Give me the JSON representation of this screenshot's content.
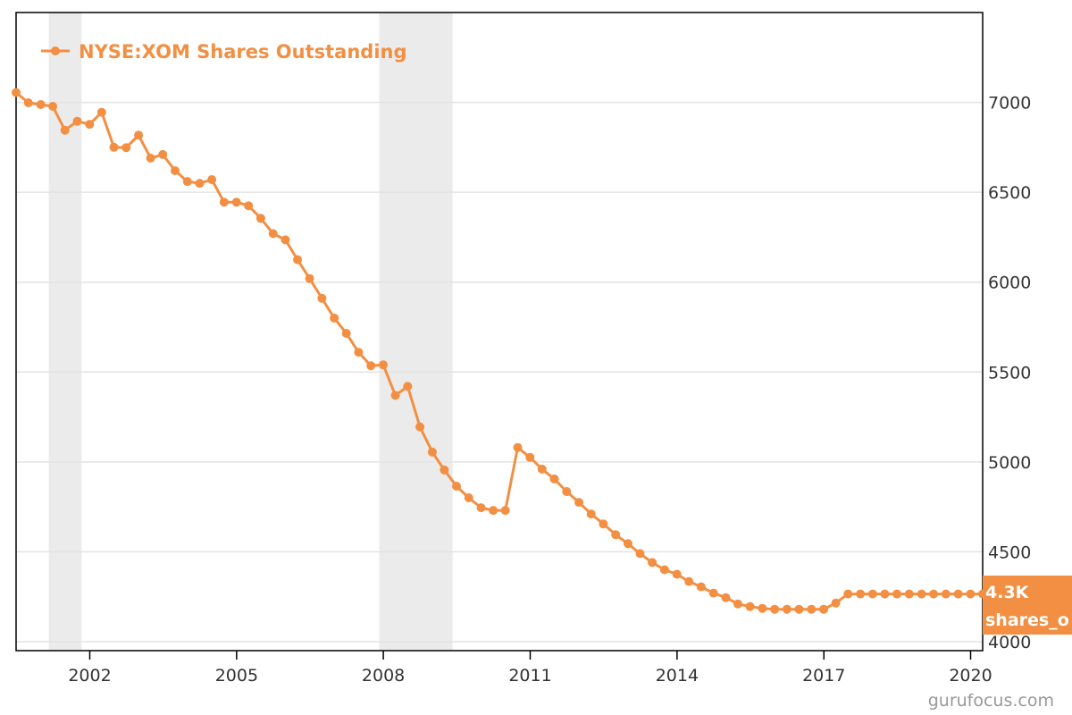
{
  "chart_data": {
    "type": "line",
    "x_axis": {
      "type": "date",
      "range": [
        "2000-06-30",
        "2020-03-31"
      ],
      "ticks": [
        "2002",
        "2005",
        "2008",
        "2011",
        "2014",
        "2017",
        "2020"
      ]
    },
    "y_axis": {
      "position": "right",
      "range": [
        3950,
        7500
      ],
      "ticks": [
        "4000",
        "4500",
        "5000",
        "5500",
        "6000",
        "6500",
        "7000"
      ],
      "grid": true
    },
    "recession_bands": [
      [
        "2001-03",
        "2001-11"
      ],
      [
        "2007-12",
        "2009-06"
      ]
    ],
    "legend": {
      "placement": "top-left",
      "label": "NYSE:XOM Shares Outstanding"
    },
    "series": [
      {
        "name": "NYSE:XOM Shares Outstanding",
        "color": "#f28f43",
        "points": [
          [
            "2000-06-30",
            7055
          ],
          [
            "2000-09-30",
            6998
          ],
          [
            "2000-12-31",
            6988
          ],
          [
            "2001-03-31",
            6978
          ],
          [
            "2001-06-30",
            6845
          ],
          [
            "2001-09-30",
            6895
          ],
          [
            "2001-12-31",
            6878
          ],
          [
            "2002-03-31",
            6945
          ],
          [
            "2002-06-30",
            6750
          ],
          [
            "2002-09-30",
            6748
          ],
          [
            "2002-12-31",
            6818
          ],
          [
            "2003-03-31",
            6690
          ],
          [
            "2003-06-30",
            6710
          ],
          [
            "2003-09-30",
            6620
          ],
          [
            "2003-12-31",
            6560
          ],
          [
            "2004-03-31",
            6550
          ],
          [
            "2004-06-30",
            6570
          ],
          [
            "2004-09-30",
            6445
          ],
          [
            "2004-12-31",
            6445
          ],
          [
            "2005-03-31",
            6425
          ],
          [
            "2005-06-30",
            6355
          ],
          [
            "2005-09-30",
            6270
          ],
          [
            "2005-12-31",
            6235
          ],
          [
            "2006-03-31",
            6125
          ],
          [
            "2006-06-30",
            6020
          ],
          [
            "2006-09-30",
            5910
          ],
          [
            "2006-12-31",
            5800
          ],
          [
            "2007-03-31",
            5715
          ],
          [
            "2007-06-30",
            5610
          ],
          [
            "2007-09-30",
            5535
          ],
          [
            "2007-12-31",
            5540
          ],
          [
            "2008-03-31",
            5370
          ],
          [
            "2008-06-30",
            5420
          ],
          [
            "2008-09-30",
            5195
          ],
          [
            "2008-12-31",
            5055
          ],
          [
            "2009-03-31",
            4955
          ],
          [
            "2009-06-30",
            4865
          ],
          [
            "2009-09-30",
            4800
          ],
          [
            "2009-12-31",
            4745
          ],
          [
            "2010-03-31",
            4730
          ],
          [
            "2010-06-30",
            4730
          ],
          [
            "2010-09-30",
            5080
          ],
          [
            "2010-12-31",
            5025
          ],
          [
            "2011-03-31",
            4960
          ],
          [
            "2011-06-30",
            4905
          ],
          [
            "2011-09-30",
            4835
          ],
          [
            "2011-12-31",
            4775
          ],
          [
            "2012-03-31",
            4710
          ],
          [
            "2012-06-30",
            4655
          ],
          [
            "2012-09-30",
            4595
          ],
          [
            "2012-12-31",
            4545
          ],
          [
            "2013-03-31",
            4490
          ],
          [
            "2013-06-30",
            4440
          ],
          [
            "2013-09-30",
            4400
          ],
          [
            "2013-12-31",
            4375
          ],
          [
            "2014-03-31",
            4335
          ],
          [
            "2014-06-30",
            4305
          ],
          [
            "2014-09-30",
            4270
          ],
          [
            "2014-12-31",
            4245
          ],
          [
            "2015-03-31",
            4210
          ],
          [
            "2015-06-30",
            4195
          ],
          [
            "2015-09-30",
            4185
          ],
          [
            "2015-12-31",
            4180
          ],
          [
            "2016-03-31",
            4180
          ],
          [
            "2016-06-30",
            4180
          ],
          [
            "2016-09-30",
            4180
          ],
          [
            "2016-12-31",
            4180
          ],
          [
            "2017-03-31",
            4215
          ],
          [
            "2017-06-30",
            4265
          ],
          [
            "2017-09-30",
            4265
          ],
          [
            "2017-12-31",
            4265
          ],
          [
            "2018-03-31",
            4265
          ],
          [
            "2018-06-30",
            4265
          ],
          [
            "2018-09-30",
            4265
          ],
          [
            "2018-12-31",
            4265
          ],
          [
            "2019-03-31",
            4265
          ],
          [
            "2019-06-30",
            4265
          ],
          [
            "2019-09-30",
            4265
          ],
          [
            "2019-12-31",
            4265
          ],
          [
            "2020-03-31",
            4265
          ]
        ]
      }
    ],
    "last_value_flag": {
      "line1": "4.3K",
      "line2": "shares_o",
      "color": "#f28f43"
    }
  },
  "credit": "gurufocus.com"
}
